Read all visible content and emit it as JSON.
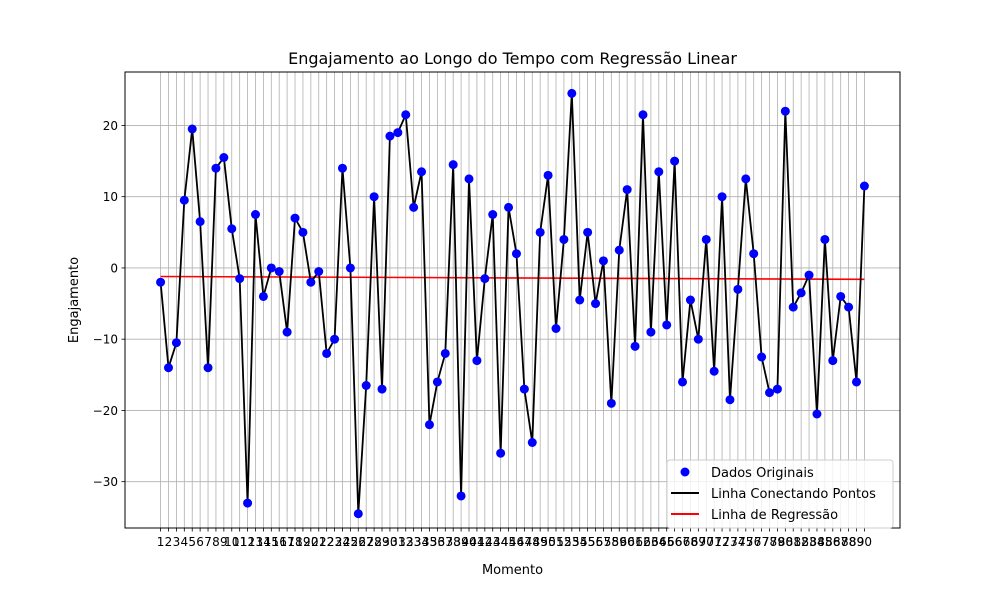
{
  "chart_data": {
    "type": "line",
    "title": "Engajamento ao Longo do Tempo com Regressão Linear",
    "xlabel": "Momento",
    "ylabel": "Engajamento",
    "xlim": [
      -3.5,
      94.5
    ],
    "ylim": [
      -36.5,
      27.5
    ],
    "x": [
      1,
      2,
      3,
      4,
      5,
      6,
      7,
      8,
      9,
      10,
      11,
      12,
      13,
      14,
      15,
      16,
      17,
      18,
      19,
      20,
      21,
      22,
      23,
      24,
      25,
      26,
      27,
      28,
      29,
      30,
      31,
      32,
      33,
      34,
      35,
      36,
      37,
      38,
      39,
      40,
      41,
      42,
      43,
      44,
      45,
      46,
      47,
      48,
      49,
      50,
      51,
      52,
      53,
      54,
      55,
      56,
      57,
      58,
      59,
      60,
      61,
      62,
      63,
      64,
      65,
      66,
      67,
      68,
      69,
      70,
      71,
      72,
      73,
      74,
      75,
      76,
      77,
      78,
      79,
      80,
      81,
      82,
      83,
      84,
      85,
      86,
      87,
      88,
      89,
      90
    ],
    "x_tick_labels": [
      "1",
      "2",
      "3",
      "4",
      "5",
      "6",
      "7",
      "8",
      "9",
      "10",
      "11",
      "12",
      "13",
      "14",
      "15",
      "16",
      "17",
      "18",
      "19",
      "20",
      "21",
      "22",
      "23",
      "24",
      "25",
      "26",
      "27",
      "28",
      "29",
      "30",
      "31",
      "32",
      "33",
      "34",
      "35",
      "36",
      "37",
      "38",
      "39",
      "40",
      "41",
      "42",
      "43",
      "44",
      "45",
      "46",
      "47",
      "48",
      "49",
      "50",
      "51",
      "52",
      "53",
      "54",
      "55",
      "56",
      "57",
      "58",
      "59",
      "60",
      "61",
      "62",
      "63",
      "64",
      "65",
      "66",
      "67",
      "68",
      "69",
      "70",
      "71",
      "72",
      "73",
      "74",
      "75",
      "76",
      "77",
      "78",
      "79",
      "80",
      "81",
      "82",
      "83",
      "84",
      "85",
      "86",
      "87",
      "88",
      "89",
      "90"
    ],
    "y_ticks": [
      -30,
      -20,
      -10,
      0,
      10,
      20
    ],
    "y_tick_labels": [
      "−30",
      "−20",
      "−10",
      "0",
      "10",
      "20"
    ],
    "grid": true,
    "legend_position": "bottom-right",
    "series": [
      {
        "name": "Dados Originais",
        "kind": "scatter",
        "color": "#0000ff",
        "values": [
          -2,
          -14,
          -10.5,
          9.5,
          19.5,
          6.5,
          -14,
          14,
          15.5,
          5.5,
          -1.5,
          -33,
          7.5,
          -4,
          0,
          -0.5,
          -9,
          7,
          5,
          -2,
          -0.5,
          -12,
          -10,
          14,
          0,
          -34.5,
          -16.5,
          10,
          -17,
          18.5,
          19,
          21.5,
          8.5,
          13.5,
          -22,
          -16,
          -12,
          14.5,
          -32,
          12.5,
          -13,
          -1.5,
          7.5,
          -26,
          8.5,
          2,
          -17,
          -24.5,
          5,
          13,
          -8.5,
          4,
          24.5,
          -4.5,
          5,
          -5,
          1,
          -19,
          2.5,
          11,
          -11,
          21.5,
          -9,
          13.5,
          -8,
          15,
          -16,
          -4.5,
          -10,
          4,
          -14.5,
          10,
          -18.5,
          -3,
          12.5,
          2,
          -12.5,
          -17.5,
          -17,
          22,
          -5.5,
          -3.5,
          -1,
          -20.5,
          4,
          -13,
          -4,
          -5.5,
          -16,
          11.5
        ]
      },
      {
        "name": "Linha Conectando Pontos",
        "kind": "line",
        "color": "#000000",
        "source": "Dados Originais"
      },
      {
        "name": "Linha de Regressão",
        "kind": "line",
        "color": "#ff0000",
        "y_start": -1.2,
        "y_end": -1.6
      }
    ]
  }
}
